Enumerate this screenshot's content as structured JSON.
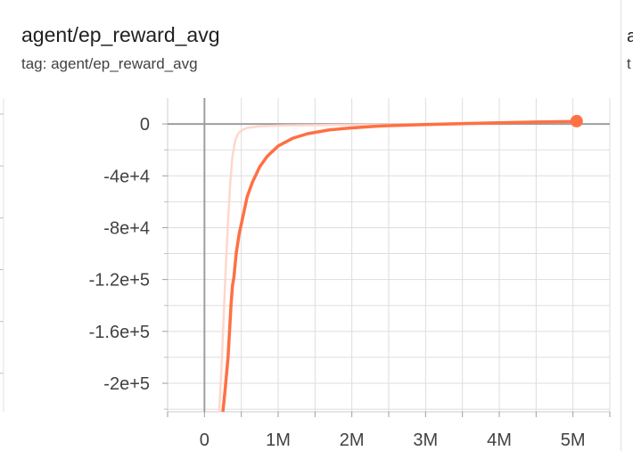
{
  "card": {
    "title": "agent/ep_reward_avg",
    "subtitle": "tag: agent/ep_reward_avg"
  },
  "next_card": {
    "title_fragment": "a",
    "subtitle_fragment": "t"
  },
  "chart_data": {
    "type": "line",
    "title": "agent/ep_reward_avg",
    "xlabel": "",
    "ylabel": "",
    "xlim": [
      -500000,
      5500000
    ],
    "ylim": [
      -222000,
      20000
    ],
    "x_ticks": [
      0,
      1000000,
      2000000,
      3000000,
      4000000,
      5000000
    ],
    "x_tick_labels": [
      "0",
      "1M",
      "2M",
      "3M",
      "4M",
      "5M"
    ],
    "y_ticks": [
      0,
      -40000,
      -80000,
      -120000,
      -160000,
      -200000
    ],
    "y_tick_labels": [
      "0",
      "-4e+4",
      "-8e+4",
      "-1.2e+5",
      "-1.6e+5",
      "-2e+5"
    ],
    "grid": true,
    "colors": {
      "smoothed": "#ff7043",
      "raw": "#ffd7cc",
      "grid": "#dddddd",
      "axis_zero": "#9e9e9e"
    },
    "series": [
      {
        "kind": "raw",
        "x": [
          200000,
          230000,
          260000,
          290000,
          320000,
          350000,
          380000,
          420000,
          460000,
          520000,
          580000,
          650000,
          750000,
          900000,
          1100000,
          1400000,
          1800000,
          2200000,
          2600000,
          3000000,
          3500000,
          4000000,
          4500000,
          5000000,
          5050000
        ],
        "y": [
          -222000,
          -190000,
          -150000,
          -110000,
          -75000,
          -45000,
          -25000,
          -12000,
          -7000,
          -4500,
          -3000,
          -2500,
          -1800,
          -1500,
          -1200,
          -1000,
          -700,
          -500,
          -300,
          0,
          800,
          1200,
          1500,
          2000,
          2200
        ]
      },
      {
        "kind": "smoothed",
        "x": [
          250000,
          280000,
          320000,
          360000,
          380000,
          400000,
          430000,
          470000,
          520000,
          580000,
          650000,
          750000,
          850000,
          1000000,
          1200000,
          1400000,
          1700000,
          2000000,
          2400000,
          3000000,
          3500000,
          4000000,
          4500000,
          5000000,
          5050000
        ],
        "y": [
          -222000,
          -205000,
          -180000,
          -140000,
          -125000,
          -118000,
          -100000,
          -85000,
          -72000,
          -56000,
          -45000,
          -33000,
          -25000,
          -17000,
          -11000,
          -7500,
          -4500,
          -3000,
          -1500,
          -500,
          300,
          900,
          1500,
          2000,
          2200
        ]
      }
    ]
  }
}
